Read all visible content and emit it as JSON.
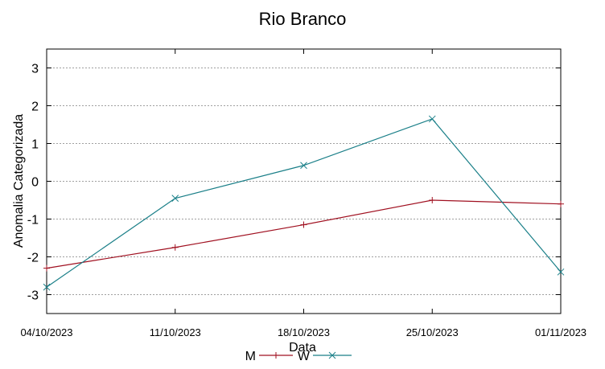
{
  "chart_data": {
    "type": "line",
    "title": "Rio Branco",
    "xlabel": "Data",
    "ylabel": "Anomalia Categorizada",
    "categories": [
      "04/10/2023",
      "11/10/2023",
      "18/10/2023",
      "25/10/2023",
      "01/11/2023"
    ],
    "ylim": [
      -3.5,
      3.5
    ],
    "yticks": [
      3,
      2,
      1,
      0,
      -1,
      -2,
      -3
    ],
    "grid": true,
    "legend_position": "bottom",
    "series": [
      {
        "name": "M",
        "color": "#a01020",
        "marker": "plus",
        "values": [
          -2.3,
          -1.75,
          -1.15,
          -0.5,
          -0.6
        ]
      },
      {
        "name": "W",
        "color": "#1a7f88",
        "marker": "cross",
        "values": [
          -2.8,
          -0.45,
          0.42,
          1.65,
          -2.4
        ]
      }
    ]
  }
}
